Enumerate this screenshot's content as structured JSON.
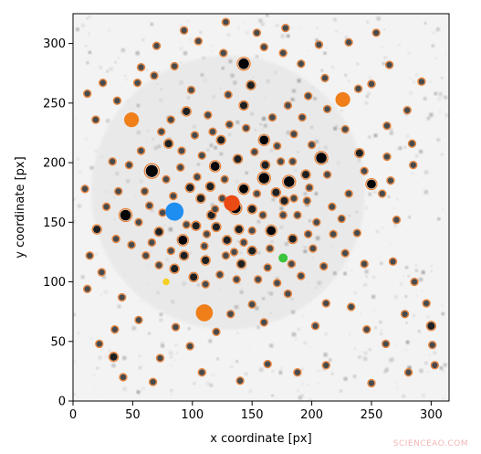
{
  "watermark": "SCIENCEAO.COM",
  "chart_data": {
    "type": "scatter",
    "title": "",
    "xlabel": "x coordinate [px]",
    "ylabel": "y coordinate [px]",
    "xlim": [
      0,
      315
    ],
    "ylim": [
      0,
      325
    ],
    "xticks": [
      0,
      50,
      100,
      150,
      200,
      250,
      300
    ],
    "yticks": [
      0,
      50,
      100,
      150,
      200,
      250,
      300
    ],
    "grid": false,
    "legend": "none",
    "background": "grayscale star-field image (white background, dark blobs)",
    "colors": {
      "ring": "#e8833a",
      "blue": "#1f8ef1",
      "orange": "#f07f1a",
      "red": "#ea4a14",
      "green": "#3cc43c",
      "yellow": "#f5d020"
    },
    "highlighted_points": [
      {
        "x": 85,
        "y": 159,
        "r": 8,
        "color": "blue"
      },
      {
        "x": 133,
        "y": 166,
        "r": 7,
        "color": "red"
      },
      {
        "x": 49,
        "y": 236,
        "r": 6.5,
        "color": "orange"
      },
      {
        "x": 226,
        "y": 253,
        "r": 6.5,
        "color": "orange"
      },
      {
        "x": 110,
        "y": 74,
        "r": 7.5,
        "color": "orange"
      },
      {
        "x": 176,
        "y": 120,
        "r": 4,
        "color": "green"
      },
      {
        "x": 78,
        "y": 100,
        "r": 3,
        "color": "yellow"
      }
    ],
    "stars": [
      [
        66,
        193,
        8
      ],
      [
        161,
        198,
        5
      ],
      [
        208,
        204,
        7
      ],
      [
        250,
        182,
        6
      ],
      [
        143,
        283,
        7
      ],
      [
        160,
        187,
        7
      ],
      [
        166,
        143,
        6
      ],
      [
        181,
        184,
        7
      ],
      [
        184,
        136,
        5
      ],
      [
        72,
        142,
        5
      ],
      [
        92,
        135,
        6
      ],
      [
        103,
        147,
        5
      ],
      [
        120,
        146,
        5
      ],
      [
        136,
        162,
        7
      ],
      [
        143,
        178,
        6
      ],
      [
        150,
        161,
        5
      ],
      [
        170,
        175,
        5
      ],
      [
        119,
        197,
        6
      ],
      [
        108,
        206,
        4
      ],
      [
        90,
        196,
        4
      ],
      [
        98,
        179,
        5
      ],
      [
        107,
        170,
        5
      ],
      [
        115,
        180,
        5
      ],
      [
        125,
        170,
        4
      ],
      [
        129,
        135,
        5
      ],
      [
        150,
        126,
        5
      ],
      [
        150,
        143,
        4
      ],
      [
        159,
        156,
        4
      ],
      [
        177,
        168,
        5
      ],
      [
        188,
        156,
        4
      ],
      [
        196,
        168,
        4
      ],
      [
        195,
        190,
        5
      ],
      [
        197,
        140,
        4
      ],
      [
        80,
        216,
        5
      ],
      [
        91,
        210,
        4
      ],
      [
        102,
        223,
        4
      ],
      [
        113,
        240,
        4
      ],
      [
        124,
        219,
        5
      ],
      [
        138,
        203,
        5
      ],
      [
        160,
        219,
        6
      ],
      [
        171,
        214,
        4
      ],
      [
        185,
        224,
        4
      ],
      [
        192,
        238,
        4
      ],
      [
        143,
        248,
        5
      ],
      [
        130,
        257,
        4
      ],
      [
        149,
        265,
        5
      ],
      [
        167,
        238,
        4
      ],
      [
        180,
        248,
        4
      ],
      [
        197,
        256,
        4
      ],
      [
        213,
        245,
        4
      ],
      [
        99,
        261,
        4
      ],
      [
        95,
        243,
        5
      ],
      [
        82,
        236,
        4
      ],
      [
        74,
        226,
        4
      ],
      [
        57,
        210,
        4
      ],
      [
        47,
        198,
        4
      ],
      [
        44,
        156,
        7
      ],
      [
        60,
        176,
        4
      ],
      [
        55,
        150,
        4
      ],
      [
        49,
        131,
        4
      ],
      [
        61,
        122,
        4
      ],
      [
        72,
        114,
        4
      ],
      [
        85,
        111,
        5
      ],
      [
        93,
        122,
        5
      ],
      [
        101,
        104,
        5
      ],
      [
        111,
        98,
        4
      ],
      [
        111,
        118,
        5
      ],
      [
        123,
        106,
        4
      ],
      [
        128,
        122,
        4
      ],
      [
        137,
        102,
        4
      ],
      [
        141,
        115,
        5
      ],
      [
        155,
        102,
        4
      ],
      [
        163,
        112,
        4
      ],
      [
        171,
        99,
        4
      ],
      [
        183,
        115,
        4
      ],
      [
        191,
        105,
        4
      ],
      [
        201,
        128,
        4
      ],
      [
        210,
        113,
        4
      ],
      [
        228,
        124,
        4
      ],
      [
        238,
        141,
        4
      ],
      [
        244,
        115,
        4
      ],
      [
        259,
        174,
        4
      ],
      [
        263,
        205,
        4
      ],
      [
        240,
        208,
        5
      ],
      [
        231,
        174,
        4
      ],
      [
        217,
        163,
        4
      ],
      [
        213,
        190,
        4
      ],
      [
        228,
        228,
        4
      ],
      [
        239,
        262,
        4
      ],
      [
        250,
        266,
        4
      ],
      [
        211,
        271,
        4
      ],
      [
        191,
        283,
        4
      ],
      [
        176,
        292,
        4
      ],
      [
        160,
        297,
        4
      ],
      [
        126,
        292,
        4
      ],
      [
        105,
        302,
        4
      ],
      [
        85,
        281,
        4
      ],
      [
        68,
        273,
        4
      ],
      [
        54,
        267,
        4
      ],
      [
        37,
        252,
        4
      ],
      [
        19,
        236,
        4
      ],
      [
        33,
        201,
        4
      ],
      [
        20,
        144,
        5
      ],
      [
        14,
        122,
        4
      ],
      [
        24,
        108,
        4
      ],
      [
        41,
        87,
        4
      ],
      [
        55,
        68,
        4
      ],
      [
        35,
        60,
        4
      ],
      [
        22,
        48,
        4
      ],
      [
        34,
        37,
        5
      ],
      [
        73,
        36,
        4
      ],
      [
        86,
        62,
        4
      ],
      [
        98,
        46,
        4
      ],
      [
        120,
        58,
        4
      ],
      [
        132,
        73,
        4
      ],
      [
        150,
        81,
        4
      ],
      [
        160,
        66,
        4
      ],
      [
        180,
        90,
        4
      ],
      [
        203,
        63,
        4
      ],
      [
        212,
        82,
        4
      ],
      [
        233,
        79,
        4
      ],
      [
        246,
        60,
        4
      ],
      [
        262,
        48,
        4
      ],
      [
        278,
        73,
        4
      ],
      [
        300,
        63,
        5
      ],
      [
        301,
        47,
        4
      ],
      [
        296,
        82,
        4
      ],
      [
        286,
        100,
        4
      ],
      [
        268,
        117,
        4
      ],
      [
        271,
        152,
        4
      ],
      [
        266,
        185,
        4
      ],
      [
        285,
        198,
        4
      ],
      [
        284,
        216,
        4
      ],
      [
        263,
        231,
        4
      ],
      [
        280,
        244,
        4
      ],
      [
        292,
        268,
        4
      ],
      [
        265,
        282,
        4
      ],
      [
        254,
        309,
        4
      ],
      [
        231,
        301,
        4
      ],
      [
        206,
        299,
        4
      ],
      [
        178,
        313,
        4
      ],
      [
        154,
        309,
        4
      ],
      [
        128,
        318,
        4
      ],
      [
        93,
        311,
        4
      ],
      [
        70,
        298,
        4
      ],
      [
        57,
        280,
        4
      ],
      [
        25,
        267,
        4
      ],
      [
        12,
        258,
        4
      ],
      [
        10,
        178,
        4
      ],
      [
        12,
        94,
        4
      ],
      [
        42,
        20,
        4
      ],
      [
        67,
        16,
        4
      ],
      [
        108,
        24,
        4
      ],
      [
        140,
        17,
        4
      ],
      [
        163,
        31,
        4
      ],
      [
        188,
        24,
        4
      ],
      [
        212,
        30,
        4
      ],
      [
        250,
        15,
        4
      ],
      [
        281,
        24,
        4
      ],
      [
        303,
        30,
        4
      ],
      [
        116,
        156,
        5
      ],
      [
        139,
        144,
        5
      ],
      [
        127,
        186,
        4
      ],
      [
        104,
        188,
        4
      ],
      [
        84,
        172,
        4
      ],
      [
        75,
        158,
        4
      ],
      [
        64,
        164,
        4
      ],
      [
        78,
        186,
        4
      ],
      [
        152,
        209,
        4
      ],
      [
        145,
        229,
        4
      ],
      [
        131,
        232,
        4
      ],
      [
        117,
        226,
        4
      ],
      [
        174,
        201,
        4
      ],
      [
        184,
        201,
        4
      ],
      [
        200,
        215,
        4
      ],
      [
        176,
        156,
        4
      ],
      [
        165,
        128,
        4
      ],
      [
        143,
        133,
        4
      ],
      [
        135,
        125,
        4
      ],
      [
        110,
        130,
        4
      ],
      [
        95,
        148,
        4
      ],
      [
        82,
        126,
        4
      ],
      [
        66,
        133,
        4
      ],
      [
        38,
        176,
        4
      ],
      [
        36,
        136,
        4
      ],
      [
        28,
        163,
        4
      ],
      [
        204,
        150,
        4
      ],
      [
        218,
        140,
        4
      ],
      [
        225,
        153,
        4
      ],
      [
        244,
        193,
        4
      ],
      [
        198,
        179,
        4
      ],
      [
        185,
        170,
        4
      ],
      [
        154,
        174,
        4
      ],
      [
        119,
        161,
        4
      ],
      [
        112,
        140,
        4
      ]
    ]
  }
}
